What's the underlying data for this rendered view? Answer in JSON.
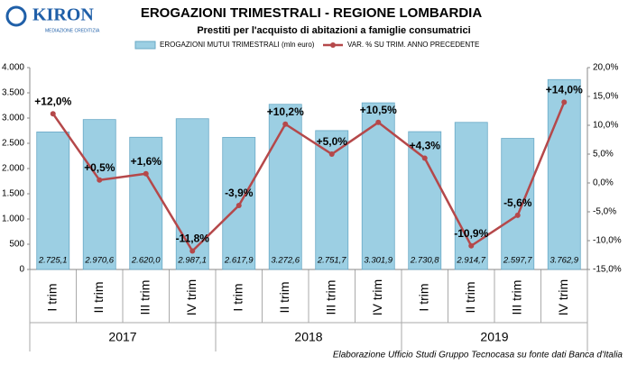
{
  "logo": {
    "name": "KIRON",
    "tagline": "MEDIAZIONE CREDITIZIA"
  },
  "chart_data": {
    "type": "bar-line",
    "title": "EROGAZIONI TRIMESTRALI - REGIONE LOMBARDIA",
    "subtitle": "Prestiti per l'acquisto di abitazioni a famiglie consumatrici",
    "categories": [
      "I trim",
      "II trim",
      "III trim",
      "IV trim",
      "I trim",
      "II trim",
      "III trim",
      "IV trim",
      "I trim",
      "II trim",
      "III trim",
      "IV trim"
    ],
    "groups": [
      "2017",
      "2018",
      "2019"
    ],
    "series": [
      {
        "name": "EROGAZIONI MUTUI TRIMESTRALI (mln euro)",
        "type": "bar",
        "color": "#9ccfe3",
        "values": [
          2725.1,
          2970.6,
          2620.0,
          2987.1,
          2617.9,
          3272.6,
          2751.7,
          3301.9,
          2730.8,
          2914.7,
          2597.7,
          3762.9
        ],
        "value_labels": [
          "2.725,1",
          "2.970,6",
          "2.620,0",
          "2.987,1",
          "2.617,9",
          "3.272,6",
          "2.751,7",
          "3.301,9",
          "2.730,8",
          "2.914,7",
          "2.597,7",
          "3.762,9"
        ]
      },
      {
        "name": "VAR. % SU TRIM. ANNO PRECEDENTE",
        "type": "line",
        "axis": "y2",
        "color": "#b5484a",
        "values": [
          12.0,
          0.5,
          1.6,
          -11.8,
          -3.9,
          10.2,
          5.0,
          10.5,
          4.3,
          -10.9,
          -5.6,
          14.0
        ],
        "value_labels": [
          "+12,0%",
          "+0,5%",
          "+1,6%",
          "-11,8%",
          "-3,9%",
          "+10,2%",
          "+5,0%",
          "+10,5%",
          "+4,3%",
          "-10,9%",
          "-5,6%",
          "+14,0%"
        ]
      }
    ],
    "ylim": [
      0,
      4000
    ],
    "yticks": [
      0,
      500,
      {
        "value": 1000,
        "label": "1.000"
      },
      {
        "value": 1500,
        "label": "1.500"
      },
      {
        "value": 2000,
        "label": "2.000"
      },
      {
        "value": 2500,
        "label": "2.500"
      },
      {
        "value": 3000,
        "label": "3.000"
      },
      {
        "value": 3500,
        "label": "3.500"
      },
      {
        "value": 4000,
        "label": "4.000"
      }
    ],
    "y2lim": [
      -15,
      20
    ],
    "y2ticks": [
      {
        "value": -15,
        "label": "-15,0%"
      },
      {
        "value": -10,
        "label": "-10,0%"
      },
      {
        "value": -5,
        "label": "-5,0%"
      },
      {
        "value": 0,
        "label": "0,0%"
      },
      {
        "value": 5,
        "label": "5,0%"
      },
      {
        "value": 10,
        "label": "10,0%"
      },
      {
        "value": 15,
        "label": "15,0%"
      },
      {
        "value": 20,
        "label": "20,0%"
      }
    ],
    "grid": false,
    "source": "Elaborazione Ufficio Studi Gruppo Tecnocasa su fonte dati Banca d'Italia"
  }
}
